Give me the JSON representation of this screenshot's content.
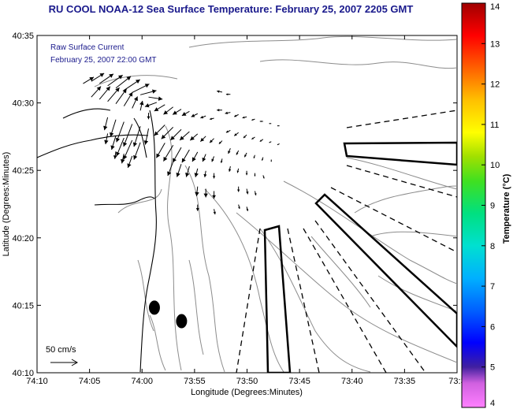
{
  "title": "RU COOL  NOAA-12  Sea Surface Temperature:  February 25, 2007 2205 GMT",
  "chart_data": {
    "type": "scatter",
    "subtype": "current vector map with coastline, bathymetry contours and SST colorbar",
    "xlabel": "Longitude (Degrees:Minutes)",
    "ylabel": "Latitude (Degrees:Minutes)",
    "x_ticks": [
      "74:10",
      "74:05",
      "74:00",
      "73:55",
      "73:50",
      "73:45",
      "73:40",
      "73:35",
      "73:3"
    ],
    "y_ticks": [
      "40:35",
      "40:30",
      "40:25",
      "40:20",
      "40:15",
      "40:10"
    ],
    "xlim": [
      -74.1667,
      -73.5
    ],
    "ylim": [
      40.1667,
      40.5833
    ],
    "annotation_lines": [
      "Raw Surface Current",
      "February 25, 2007 22:00 GMT"
    ],
    "scale_label": "50 cm/s",
    "colorbar": {
      "label": "Temperature (°C)",
      "min": 4,
      "max": 14,
      "ticks": [
        "4",
        "5",
        "6",
        "7",
        "8",
        "9",
        "10",
        "11",
        "12",
        "13",
        "14"
      ]
    },
    "stations": [
      {
        "lon": -73.9804,
        "lat": 40.2471
      },
      {
        "lon": -73.9373,
        "lat": 40.2304
      }
    ],
    "vectors": [
      {
        "lon": -74.0936,
        "lat": 40.5239,
        "u": 20,
        "v": 12
      },
      {
        "lon": -74.0806,
        "lat": 40.5267,
        "u": 24,
        "v": 15
      },
      {
        "lon": -74.0676,
        "lat": 40.5239,
        "u": 26,
        "v": 18
      },
      {
        "lon": -74.0546,
        "lat": 40.5211,
        "u": 28,
        "v": 20
      },
      {
        "lon": -74.0416,
        "lat": 40.5183,
        "u": 28,
        "v": 22
      },
      {
        "lon": -74.0287,
        "lat": 40.5156,
        "u": 30,
        "v": 20
      },
      {
        "lon": -74.0157,
        "lat": 40.5128,
        "u": 32,
        "v": 16
      },
      {
        "lon": -74.0027,
        "lat": 40.51,
        "u": 30,
        "v": 8
      },
      {
        "lon": -73.9897,
        "lat": 40.5072,
        "u": 26,
        "v": -4
      },
      {
        "lon": -74.0806,
        "lat": 40.5072,
        "u": 18,
        "v": 20
      },
      {
        "lon": -74.0676,
        "lat": 40.5044,
        "u": 20,
        "v": 24
      },
      {
        "lon": -74.0546,
        "lat": 40.5017,
        "u": 22,
        "v": 26
      },
      {
        "lon": -74.0416,
        "lat": 40.4989,
        "u": 20,
        "v": 28
      },
      {
        "lon": -74.0287,
        "lat": 40.4961,
        "u": 16,
        "v": 26
      },
      {
        "lon": -74.0157,
        "lat": 40.4933,
        "u": 10,
        "v": 22
      },
      {
        "lon": -74.0027,
        "lat": 40.4906,
        "u": 4,
        "v": 18
      },
      {
        "lon": -73.9897,
        "lat": 40.4878,
        "u": 0,
        "v": -12
      },
      {
        "lon": -74.0546,
        "lat": 40.4822,
        "u": -6,
        "v": -24
      },
      {
        "lon": -74.0416,
        "lat": 40.4794,
        "u": -10,
        "v": -32
      },
      {
        "lon": -74.0287,
        "lat": 40.4767,
        "u": -14,
        "v": -38
      },
      {
        "lon": -74.0157,
        "lat": 40.4739,
        "u": -16,
        "v": -42
      },
      {
        "lon": -74.0027,
        "lat": 40.4711,
        "u": -12,
        "v": -38
      },
      {
        "lon": -73.9897,
        "lat": 40.4683,
        "u": -6,
        "v": -30
      },
      {
        "lon": -74.0546,
        "lat": 40.4622,
        "u": -4,
        "v": -20
      },
      {
        "lon": -74.0416,
        "lat": 40.4594,
        "u": -8,
        "v": -26
      },
      {
        "lon": -74.0287,
        "lat": 40.4567,
        "u": -14,
        "v": -34
      },
      {
        "lon": -74.0157,
        "lat": 40.4539,
        "u": -16,
        "v": -36
      },
      {
        "lon": -74.0027,
        "lat": 40.4511,
        "u": -12,
        "v": -32
      },
      {
        "lon": -74.0416,
        "lat": 40.44,
        "u": -2,
        "v": -14
      },
      {
        "lon": -74.0287,
        "lat": 40.4372,
        "u": -4,
        "v": -18
      },
      {
        "lon": -74.0157,
        "lat": 40.4344,
        "u": -8,
        "v": -22
      },
      {
        "lon": -73.9767,
        "lat": 40.5006,
        "u": -22,
        "v": -8
      },
      {
        "lon": -73.9637,
        "lat": 40.4978,
        "u": -20,
        "v": -12
      },
      {
        "lon": -73.9507,
        "lat": 40.495,
        "u": -18,
        "v": -14
      },
      {
        "lon": -73.9378,
        "lat": 40.4922,
        "u": -16,
        "v": -10
      },
      {
        "lon": -73.9248,
        "lat": 40.4895,
        "u": -14,
        "v": -8
      },
      {
        "lon": -73.9118,
        "lat": 40.4867,
        "u": -12,
        "v": -6
      },
      {
        "lon": -73.8988,
        "lat": 40.4839,
        "u": -10,
        "v": -4
      },
      {
        "lon": -73.8858,
        "lat": 40.4811,
        "u": -8,
        "v": -2
      },
      {
        "lon": -73.9637,
        "lat": 40.4728,
        "u": -20,
        "v": -20
      },
      {
        "lon": -73.9507,
        "lat": 40.47,
        "u": -22,
        "v": -22
      },
      {
        "lon": -73.9378,
        "lat": 40.4672,
        "u": -20,
        "v": -20
      },
      {
        "lon": -73.9248,
        "lat": 40.4645,
        "u": -18,
        "v": -16
      },
      {
        "lon": -73.9118,
        "lat": 40.4617,
        "u": -14,
        "v": -12
      },
      {
        "lon": -73.8988,
        "lat": 40.4589,
        "u": -10,
        "v": -10
      },
      {
        "lon": -73.8858,
        "lat": 40.4561,
        "u": -8,
        "v": -8
      },
      {
        "lon": -73.8728,
        "lat": 40.4533,
        "u": -6,
        "v": -6
      },
      {
        "lon": -73.9637,
        "lat": 40.4506,
        "u": -16,
        "v": -28
      },
      {
        "lon": -73.9507,
        "lat": 40.4478,
        "u": -18,
        "v": -30
      },
      {
        "lon": -73.9378,
        "lat": 40.445,
        "u": -16,
        "v": -28
      },
      {
        "lon": -73.9248,
        "lat": 40.4422,
        "u": -14,
        "v": -24
      },
      {
        "lon": -73.9118,
        "lat": 40.4394,
        "u": -10,
        "v": -18
      },
      {
        "lon": -73.8988,
        "lat": 40.4367,
        "u": -6,
        "v": -14
      },
      {
        "lon": -73.8858,
        "lat": 40.4339,
        "u": -4,
        "v": -10
      },
      {
        "lon": -73.8728,
        "lat": 40.4311,
        "u": -2,
        "v": -8
      },
      {
        "lon": -73.9507,
        "lat": 40.4272,
        "u": -10,
        "v": -26
      },
      {
        "lon": -73.9378,
        "lat": 40.4244,
        "u": -8,
        "v": -24
      },
      {
        "lon": -73.9248,
        "lat": 40.4217,
        "u": -6,
        "v": -20
      },
      {
        "lon": -73.9118,
        "lat": 40.4189,
        "u": -4,
        "v": -16
      },
      {
        "lon": -73.8988,
        "lat": 40.4161,
        "u": -2,
        "v": -12
      },
      {
        "lon": -73.8858,
        "lat": 40.4133,
        "u": 0,
        "v": -10
      },
      {
        "lon": -73.9118,
        "lat": 40.3967,
        "u": -2,
        "v": -18
      },
      {
        "lon": -73.8988,
        "lat": 40.3939,
        "u": 0,
        "v": -16
      },
      {
        "lon": -73.8858,
        "lat": 40.3911,
        "u": 0,
        "v": -14
      },
      {
        "lon": -73.9118,
        "lat": 40.3744,
        "u": 0,
        "v": -12
      },
      {
        "lon": -73.8858,
        "lat": 40.3689,
        "u": 2,
        "v": -10
      },
      {
        "lon": -73.8728,
        "lat": 40.5133,
        "u": -10,
        "v": 2
      },
      {
        "lon": -73.8598,
        "lat": 40.5106,
        "u": -8,
        "v": 0
      },
      {
        "lon": -73.8728,
        "lat": 40.4911,
        "u": -10,
        "v": 0
      },
      {
        "lon": -73.8598,
        "lat": 40.4883,
        "u": -10,
        "v": -2
      },
      {
        "lon": -73.8469,
        "lat": 40.4856,
        "u": -8,
        "v": -4
      },
      {
        "lon": -73.8339,
        "lat": 40.4828,
        "u": -8,
        "v": -2
      },
      {
        "lon": -73.8209,
        "lat": 40.48,
        "u": -6,
        "v": -2
      },
      {
        "lon": -73.8079,
        "lat": 40.4772,
        "u": -6,
        "v": 0
      },
      {
        "lon": -73.7949,
        "lat": 40.4745,
        "u": -4,
        "v": 0
      },
      {
        "lon": -73.7819,
        "lat": 40.4717,
        "u": -4,
        "v": 0
      },
      {
        "lon": -73.8598,
        "lat": 40.4661,
        "u": -8,
        "v": -4
      },
      {
        "lon": -73.8469,
        "lat": 40.4633,
        "u": -8,
        "v": -6
      },
      {
        "lon": -73.8339,
        "lat": 40.4606,
        "u": -6,
        "v": -6
      },
      {
        "lon": -73.8209,
        "lat": 40.4578,
        "u": -6,
        "v": -4
      },
      {
        "lon": -73.8079,
        "lat": 40.455,
        "u": -6,
        "v": -4
      },
      {
        "lon": -73.7949,
        "lat": 40.4522,
        "u": -4,
        "v": -2
      },
      {
        "lon": -73.7819,
        "lat": 40.4495,
        "u": -4,
        "v": -2
      },
      {
        "lon": -73.8598,
        "lat": 40.4439,
        "u": -4,
        "v": -10
      },
      {
        "lon": -73.8469,
        "lat": 40.4411,
        "u": -4,
        "v": -8
      },
      {
        "lon": -73.8339,
        "lat": 40.4383,
        "u": -4,
        "v": -8
      },
      {
        "lon": -73.8209,
        "lat": 40.4356,
        "u": -2,
        "v": -6
      },
      {
        "lon": -73.8079,
        "lat": 40.4328,
        "u": -2,
        "v": -6
      },
      {
        "lon": -73.7949,
        "lat": 40.43,
        "u": 0,
        "v": -4
      },
      {
        "lon": -73.8598,
        "lat": 40.4217,
        "u": -2,
        "v": -10
      },
      {
        "lon": -73.8469,
        "lat": 40.4189,
        "u": -2,
        "v": -8
      },
      {
        "lon": -73.8339,
        "lat": 40.4161,
        "u": 0,
        "v": -8
      },
      {
        "lon": -73.8209,
        "lat": 40.4133,
        "u": 0,
        "v": -6
      },
      {
        "lon": -73.8079,
        "lat": 40.4106,
        "u": 2,
        "v": -6
      },
      {
        "lon": -73.8469,
        "lat": 40.3967,
        "u": 0,
        "v": -10
      },
      {
        "lon": -73.8339,
        "lat": 40.3939,
        "u": 2,
        "v": -10
      },
      {
        "lon": -73.8209,
        "lat": 40.3911,
        "u": 2,
        "v": -8
      },
      {
        "lon": -73.8469,
        "lat": 40.3744,
        "u": 2,
        "v": -8
      },
      {
        "lon": -73.8339,
        "lat": 40.3717,
        "u": 2,
        "v": -8
      }
    ]
  }
}
